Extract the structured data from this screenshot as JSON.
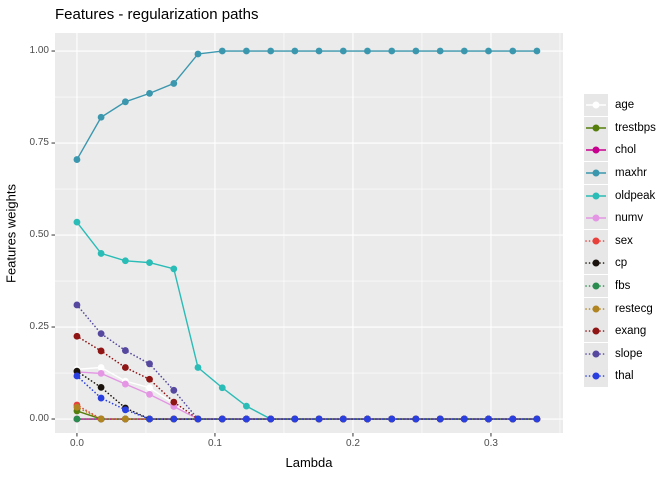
{
  "chart_data": {
    "type": "line",
    "title": "Features - regularization paths",
    "xlabel": "Lambda",
    "ylabel": "Features weights",
    "x_tick_labels": [
      "0.0",
      "0.1",
      "0.2",
      "0.3"
    ],
    "x_tick_values": [
      0,
      0.1,
      0.2,
      0.3
    ],
    "y_tick_labels": [
      "0.00",
      "0.25",
      "0.50",
      "0.75",
      "1.00"
    ],
    "y_tick_values": [
      0,
      0.25,
      0.5,
      0.75,
      1
    ],
    "x_minor": [
      0.05,
      0.15,
      0.25,
      0.35
    ],
    "y_minor": [
      0.125,
      0.375,
      0.625,
      0.875
    ],
    "xlim": [
      -0.0159,
      0.3522
    ],
    "ylim": [
      -0.038,
      1.049
    ],
    "grid": true,
    "legend_position": "right",
    "panel_bg": "#EBEBEB",
    "grid_color": "#FFFFFF",
    "tick_color": "#333333",
    "tick_label_color": "#4D4D4D",
    "x": [
      0,
      0.0175,
      0.0351,
      0.0526,
      0.0702,
      0.0877,
      0.1053,
      0.1228,
      0.1404,
      0.1579,
      0.1754,
      0.193,
      0.2105,
      0.2281,
      0.2456,
      0.2632,
      0.2807,
      0.2982,
      0.3158,
      0.3333
    ],
    "series": [
      {
        "name": "age",
        "color": "#FFFFFF",
        "linestyle": "solid",
        "values": [
          0.135,
          0.14,
          0.103,
          0.085,
          0.042,
          0,
          0,
          0,
          0,
          0,
          0,
          0,
          0,
          0,
          0,
          0,
          0,
          0,
          0,
          0
        ]
      },
      {
        "name": "trestbps",
        "color": "#567E0C",
        "linestyle": "solid",
        "values": [
          0.022,
          0,
          0,
          0,
          0,
          0,
          0,
          0,
          0,
          0,
          0,
          0,
          0,
          0,
          0,
          0,
          0,
          0,
          0,
          0
        ]
      },
      {
        "name": "chol",
        "color": "#C7018D",
        "linestyle": "solid",
        "values": [
          0,
          0,
          0,
          0,
          0,
          0,
          0,
          0,
          0,
          0,
          0,
          0,
          0,
          0,
          0,
          0,
          0,
          0,
          0,
          0
        ]
      },
      {
        "name": "maxhr",
        "color": "#3B97AE",
        "linestyle": "solid",
        "values": [
          0.705,
          0.82,
          0.862,
          0.885,
          0.912,
          0.992,
          1,
          1,
          1,
          1,
          1,
          1,
          1,
          1,
          1,
          1,
          1,
          1,
          1,
          1
        ]
      },
      {
        "name": "oldpeak",
        "color": "#2ABCB6",
        "linestyle": "solid",
        "values": [
          0.535,
          0.45,
          0.43,
          0.425,
          0.408,
          0.14,
          0.085,
          0.035,
          0,
          0,
          0,
          0,
          0,
          0,
          0,
          0,
          0,
          0,
          0,
          0
        ]
      },
      {
        "name": "numv",
        "color": "#E496E4",
        "linestyle": "solid",
        "values": [
          0.128,
          0.124,
          0.095,
          0.067,
          0.034,
          0,
          0,
          0,
          0,
          0,
          0,
          0,
          0,
          0,
          0,
          0,
          0,
          0,
          0,
          0
        ]
      },
      {
        "name": "sex",
        "color": "#E8403B",
        "linestyle": "dotted",
        "values": [
          0.038,
          0,
          0,
          0,
          0,
          0,
          0,
          0,
          0,
          0,
          0,
          0,
          0,
          0,
          0,
          0,
          0,
          0,
          0,
          0
        ]
      },
      {
        "name": "cp",
        "color": "#1A120C",
        "linestyle": "dotted",
        "values": [
          0.13,
          0.086,
          0.03,
          0,
          0,
          0,
          0,
          0,
          0,
          0,
          0,
          0,
          0,
          0,
          0,
          0,
          0,
          0,
          0,
          0
        ]
      },
      {
        "name": "fbs",
        "color": "#2B8C50",
        "linestyle": "dotted",
        "values": [
          0,
          0,
          0,
          0,
          0,
          0,
          0,
          0,
          0,
          0,
          0,
          0,
          0,
          0,
          0,
          0,
          0,
          0,
          0,
          0
        ]
      },
      {
        "name": "restecg",
        "color": "#B08420",
        "linestyle": "dotted",
        "values": [
          0.032,
          0,
          0,
          0,
          0,
          0,
          0,
          0,
          0,
          0,
          0,
          0,
          0,
          0,
          0,
          0,
          0,
          0,
          0,
          0
        ]
      },
      {
        "name": "exang",
        "color": "#8F1414",
        "linestyle": "dotted",
        "values": [
          0.225,
          0.185,
          0.14,
          0.108,
          0.046,
          0,
          0,
          0,
          0,
          0,
          0,
          0,
          0,
          0,
          0,
          0,
          0,
          0,
          0,
          0
        ]
      },
      {
        "name": "slope",
        "color": "#55489E",
        "linestyle": "dotted",
        "values": [
          0.31,
          0.232,
          0.186,
          0.15,
          0.078,
          0,
          0,
          0,
          0,
          0,
          0,
          0,
          0,
          0,
          0,
          0,
          0,
          0,
          0,
          0
        ]
      },
      {
        "name": "thal",
        "color": "#2A3FE0",
        "linestyle": "dotted",
        "values": [
          0.117,
          0.057,
          0.025,
          0,
          0,
          0,
          0,
          0,
          0,
          0,
          0,
          0,
          0,
          0,
          0,
          0,
          0,
          0,
          0,
          0
        ]
      }
    ]
  }
}
